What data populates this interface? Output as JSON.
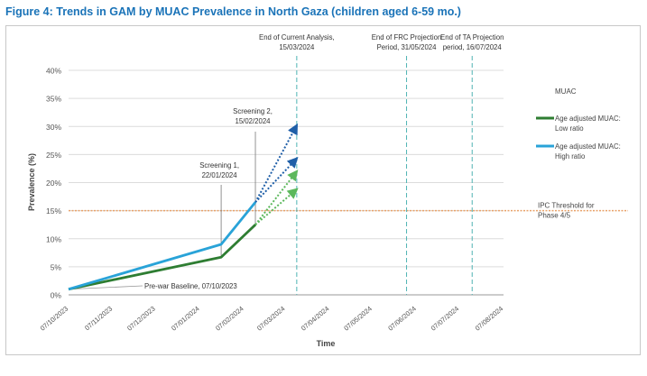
{
  "figure": {
    "title": "Figure 4: Trends in GAM by MUAC Prevalence in North Gaza (children aged 6-59 mo.)"
  },
  "chart_data": {
    "type": "line",
    "ylabel": "Prevalence (%)",
    "xlabel": "Time",
    "ylim": [
      0,
      40
    ],
    "yticks": [
      0,
      5,
      10,
      15,
      20,
      25,
      30,
      35,
      40
    ],
    "ytick_labels": [
      "0%",
      "5%",
      "10%",
      "15%",
      "20%",
      "25%",
      "30%",
      "35%",
      "40%"
    ],
    "xlim": [
      "2023-10-07",
      "2024-08-07"
    ],
    "xtick_dates": [
      "2023-10-07",
      "2023-11-07",
      "2023-12-07",
      "2024-01-07",
      "2024-02-07",
      "2024-03-07",
      "2024-04-07",
      "2024-05-07",
      "2024-06-07",
      "2024-07-07",
      "2024-08-07"
    ],
    "xtick_labels": [
      "07/10/2023",
      "07/11/2023",
      "07/12/2023",
      "07/01/2024",
      "07/02/2024",
      "07/03/2024",
      "07/04/2024",
      "07/05/2024",
      "07/06/2024",
      "07/07/2024",
      "07/08/2024"
    ],
    "grid": "horizontal",
    "legend_title": "MUAC",
    "legend_position": "right",
    "series": [
      {
        "name": "Age adjusted MUAC: Low ratio",
        "color": "#2e7d32",
        "points": [
          [
            "2023-10-07",
            1.0
          ],
          [
            "2024-01-22",
            6.7
          ],
          [
            "2024-02-15",
            12.5
          ]
        ]
      },
      {
        "name": "Age adjusted MUAC: High ratio",
        "color": "#29a3d8",
        "points": [
          [
            "2023-10-07",
            1.0
          ],
          [
            "2024-01-22",
            9.0
          ],
          [
            "2024-02-15",
            16.5
          ]
        ]
      }
    ],
    "projections": [
      {
        "from": [
          "2024-02-15",
          16.5
        ],
        "to": [
          "2024-03-15",
          30.2
        ],
        "color": "#1f5fa8",
        "style": "dotted"
      },
      {
        "from": [
          "2024-02-15",
          16.5
        ],
        "to": [
          "2024-03-15",
          24.3
        ],
        "color": "#1f5fa8",
        "style": "dotted"
      },
      {
        "from": [
          "2024-02-15",
          12.5
        ],
        "to": [
          "2024-03-15",
          22.0
        ],
        "color": "#5cb85c",
        "style": "dotted"
      },
      {
        "from": [
          "2024-02-15",
          12.5
        ],
        "to": [
          "2024-03-15",
          18.8
        ],
        "color": "#5cb85c",
        "style": "dotted"
      }
    ],
    "threshold": {
      "value": 15,
      "label": "IPC Threshold for Phase 4/5",
      "color": "#e8a26a"
    },
    "vertical_lines": [
      {
        "date": "2024-03-15",
        "label": "End of Current Analysis, 15/03/2024",
        "color": "#4fb3b3"
      },
      {
        "date": "2024-05-31",
        "label": "End of FRC Projection Period, 31/05/2024",
        "color": "#4fb3b3"
      },
      {
        "date": "2024-07-16",
        "label": "End of TA Projection period, 16/07/2024",
        "color": "#4fb3b3"
      }
    ],
    "annotations": [
      {
        "date": "2024-01-22",
        "y": 6.7,
        "label": "Screening 1, 22/01/2024"
      },
      {
        "date": "2024-02-15",
        "y": 12.5,
        "label": "Screening 2, 15/02/2024"
      },
      {
        "date": "2023-10-07",
        "y": 1.0,
        "label": "Pre-war Baseline, 07/10/2023"
      }
    ]
  }
}
